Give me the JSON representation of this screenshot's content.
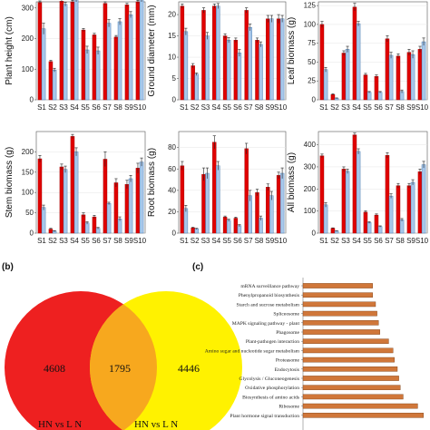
{
  "panels": {
    "b": "(b)",
    "c": "(c)"
  },
  "chart_data": [
    {
      "type": "bar",
      "ylabel": "Plant height (cm)",
      "ylim": [
        0,
        320
      ],
      "yticks": [
        0,
        100,
        200,
        300
      ],
      "categories": [
        "S1",
        "S2",
        "S3",
        "S4",
        "S5",
        "S6",
        "S7",
        "S8",
        "S9",
        "S10"
      ],
      "series": [
        {
          "color": "#e00000",
          "values": [
            318,
            125,
            322,
            320,
            228,
            212,
            315,
            205,
            310,
            320
          ],
          "errors": [
            5,
            4,
            5,
            5,
            5,
            5,
            5,
            5,
            5,
            5
          ]
        },
        {
          "color": "#a7c7ea",
          "values": [
            232,
            97,
            312,
            330,
            163,
            160,
            250,
            255,
            278,
            330
          ],
          "errors": [
            18,
            6,
            6,
            10,
            12,
            12,
            12,
            10,
            10,
            10
          ]
        }
      ]
    },
    {
      "type": "bar",
      "ylabel": "Ground diameter (mm)",
      "ylim": [
        0,
        23
      ],
      "yticks": [
        0,
        5,
        10,
        15,
        20
      ],
      "categories": [
        "S1",
        "S2",
        "S3",
        "S4",
        "S5",
        "S6",
        "S7",
        "S8",
        "S9",
        "S10"
      ],
      "series": [
        {
          "color": "#e00000",
          "values": [
            22,
            8,
            21,
            22,
            15,
            14,
            21,
            14,
            19,
            19
          ],
          "errors": [
            0.5,
            0.5,
            0.6,
            0.5,
            0.5,
            0.5,
            0.6,
            0.5,
            0.8,
            1.0
          ]
        },
        {
          "color": "#a7c7ea",
          "values": [
            16,
            6,
            15,
            22,
            14,
            11,
            17,
            13,
            19,
            19
          ],
          "errors": [
            0.8,
            0.3,
            0.8,
            0.6,
            0.6,
            0.8,
            0.8,
            0.6,
            0.8,
            0.8
          ]
        }
      ]
    },
    {
      "type": "bar",
      "ylabel": "Leaf biomass (g)",
      "ylim": [
        0,
        130
      ],
      "yticks": [
        0,
        25,
        50,
        75,
        100,
        125
      ],
      "categories": [
        "S1",
        "S2",
        "S3",
        "S4",
        "S5",
        "S6",
        "S7",
        "S8",
        "S9",
        "S10"
      ],
      "series": [
        {
          "color": "#e00000",
          "values": [
            100,
            7,
            62,
            123,
            33,
            31,
            81,
            58,
            63,
            67
          ],
          "errors": [
            4,
            1,
            3,
            5,
            2,
            2,
            4,
            3,
            4,
            4
          ]
        },
        {
          "color": "#a7c7ea",
          "values": [
            40,
            2,
            67,
            101,
            10,
            10,
            59,
            11,
            60,
            77
          ],
          "errors": [
            3,
            0.5,
            4,
            3,
            1,
            1,
            4,
            2,
            5,
            5
          ]
        }
      ]
    },
    {
      "type": "bar",
      "ylabel": "Stem biomass (g)",
      "ylim": [
        0,
        250
      ],
      "yticks": [
        0,
        50,
        100,
        150,
        200
      ],
      "categories": [
        "S1",
        "S2",
        "S3",
        "S4",
        "S5",
        "S6",
        "S7",
        "S8",
        "S9",
        "S10"
      ],
      "series": [
        {
          "color": "#e00000",
          "values": [
            183,
            10,
            163,
            238,
            45,
            40,
            182,
            124,
            120,
            160
          ],
          "errors": [
            8,
            2,
            7,
            5,
            5,
            4,
            18,
            10,
            10,
            12
          ]
        },
        {
          "color": "#a7c7ea",
          "values": [
            63,
            5,
            157,
            200,
            25,
            12,
            73,
            35,
            134,
            175
          ],
          "errors": [
            6,
            1,
            8,
            10,
            3,
            2,
            3,
            5,
            8,
            10
          ]
        }
      ]
    },
    {
      "type": "bar",
      "ylabel": "Root biomass (g)",
      "ylim": [
        0,
        95
      ],
      "yticks": [
        0,
        20,
        40,
        60,
        80
      ],
      "categories": [
        "S1",
        "S2",
        "S3",
        "S4",
        "S5",
        "S6",
        "S7",
        "S8",
        "S9",
        "S10"
      ],
      "series": [
        {
          "color": "#e00000",
          "values": [
            63,
            5,
            55,
            85,
            15,
            14,
            79,
            38,
            43,
            54
          ],
          "errors": [
            4,
            0.5,
            6,
            6,
            1,
            1,
            5,
            3,
            3,
            3
          ]
        },
        {
          "color": "#a7c7ea",
          "values": [
            23,
            4,
            56,
            63,
            12,
            7,
            35,
            14,
            35,
            56
          ],
          "errors": [
            3,
            0.5,
            5,
            4,
            1,
            1,
            5,
            2,
            4,
            5
          ]
        }
      ]
    },
    {
      "type": "bar",
      "ylabel": "All biomass (g)",
      "ylim": [
        0,
        460
      ],
      "yticks": [
        0,
        100,
        200,
        300,
        400
      ],
      "categories": [
        "S1",
        "S2",
        "S3",
        "S4",
        "S5",
        "S6",
        "S7",
        "S8",
        "S9",
        "S10"
      ],
      "series": [
        {
          "color": "#e00000",
          "values": [
            350,
            22,
            290,
            445,
            95,
            82,
            352,
            215,
            215,
            278
          ],
          "errors": [
            8,
            2,
            10,
            8,
            6,
            5,
            12,
            10,
            10,
            12
          ]
        },
        {
          "color": "#a7c7ea",
          "values": [
            128,
            10,
            280,
            370,
            48,
            30,
            168,
            60,
            230,
            310
          ],
          "errors": [
            10,
            1,
            10,
            12,
            4,
            3,
            10,
            6,
            12,
            15
          ]
        }
      ]
    },
    {
      "type": "venn",
      "sets": [
        "HN vs L N",
        "HN vs L N"
      ],
      "set_colors": [
        "#ee2020",
        "#fff200"
      ],
      "only_left": 4608,
      "overlap": 1795,
      "only_right": 4446
    },
    {
      "type": "bar",
      "orientation": "horizontal",
      "color": "#d0773a",
      "categories": [
        "mRNA surveillance pathway",
        "Phenylpropanoid biosynthesis",
        "Starch and sucrose metabolism",
        "Spliceosome",
        "MAPK signaling pathway - plant",
        "Phagosome",
        "Plant-pathogen interaction",
        "Amino sugar and nucleotide sugar metabolism",
        "Proteasome",
        "Endocytosis",
        "Glycolysis / Gluconeogenesis",
        "Oxidative phosphorylation",
        "Biosynthesis of amino acids",
        "Ribosome",
        "Plant hormone signal transduction"
      ],
      "values": [
        48,
        48,
        50,
        51,
        52,
        53,
        59,
        62,
        63,
        65,
        66,
        67,
        69,
        79,
        83
      ]
    }
  ]
}
